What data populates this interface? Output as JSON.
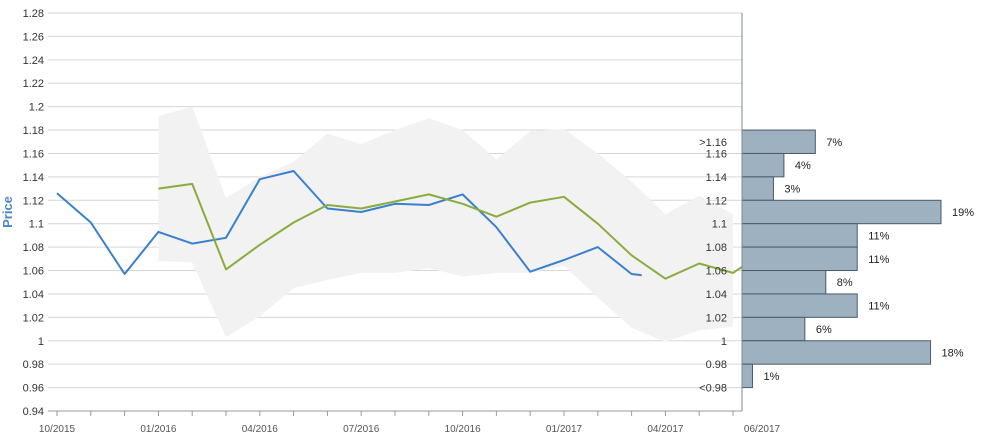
{
  "chart_data": {
    "type": "line",
    "ylabel": "Price",
    "ylim": [
      0.94,
      1.28
    ],
    "y_ticks": [
      "0.94",
      "0.96",
      "0.98",
      "1",
      "1.02",
      "1.04",
      "1.06",
      "1.08",
      "1.1",
      "1.12",
      "1.14",
      "1.16",
      "1.18",
      "1.2",
      "1.22",
      "1.24",
      "1.26",
      "1.28"
    ],
    "x_ticks": [
      "10/2015",
      "01/2016",
      "04/2016",
      "07/2016",
      "10/2016",
      "01/2017",
      "04/2017",
      "06/2017"
    ],
    "grid": true,
    "series": [
      {
        "color": "#3a80cc",
        "points": [
          [
            "2015-10",
            1.126
          ],
          [
            "2015-11",
            1.101
          ],
          [
            "2015-12",
            1.057
          ],
          [
            "2016-01",
            1.093
          ],
          [
            "2016-02",
            1.083
          ],
          [
            "2016-03",
            1.088
          ],
          [
            "2016-04",
            1.138
          ],
          [
            "2016-05",
            1.145
          ],
          [
            "2016-06",
            1.113
          ],
          [
            "2016-07",
            1.11
          ],
          [
            "2016-08",
            1.117
          ],
          [
            "2016-09",
            1.116
          ],
          [
            "2016-10",
            1.125
          ],
          [
            "2016-11",
            1.097
          ],
          [
            "2016-12",
            1.059
          ],
          [
            "2017-01",
            1.069
          ],
          [
            "2017-02",
            1.08
          ],
          [
            "2017-03",
            1.057
          ],
          [
            "2017-03-10",
            1.056
          ]
        ]
      },
      {
        "color": "#8aac3e",
        "points": [
          [
            "2016-01",
            1.13
          ],
          [
            "2016-02",
            1.134
          ],
          [
            "2016-03",
            1.061
          ],
          [
            "2016-04",
            1.082
          ],
          [
            "2016-05",
            1.101
          ],
          [
            "2016-06",
            1.116
          ],
          [
            "2016-07",
            1.113
          ],
          [
            "2016-08",
            1.119
          ],
          [
            "2016-09",
            1.125
          ],
          [
            "2016-10",
            1.117
          ],
          [
            "2016-11",
            1.106
          ],
          [
            "2016-12",
            1.118
          ],
          [
            "2017-01",
            1.123
          ],
          [
            "2017-02",
            1.1
          ],
          [
            "2017-03",
            1.073
          ],
          [
            "2017-04",
            1.053
          ],
          [
            "2017-05",
            1.066
          ],
          [
            "2017-06",
            1.058
          ],
          [
            "2017-06-15",
            1.067
          ]
        ]
      }
    ],
    "band": {
      "color": "#f2f2f2",
      "upper": [
        [
          "2016-01",
          1.192
        ],
        [
          "2016-02",
          1.2
        ],
        [
          "2016-03",
          1.122
        ],
        [
          "2016-04",
          1.14
        ],
        [
          "2016-05",
          1.153
        ],
        [
          "2016-06",
          1.177
        ],
        [
          "2016-07",
          1.168
        ],
        [
          "2016-08",
          1.18
        ],
        [
          "2016-09",
          1.19
        ],
        [
          "2016-10",
          1.18
        ],
        [
          "2016-11",
          1.155
        ],
        [
          "2016-12",
          1.179
        ],
        [
          "2017-01",
          1.181
        ],
        [
          "2017-02",
          1.16
        ],
        [
          "2017-03",
          1.136
        ],
        [
          "2017-04",
          1.108
        ],
        [
          "2017-05",
          1.124
        ],
        [
          "2017-06",
          1.108
        ]
      ],
      "lower": [
        [
          "2016-01",
          1.068
        ],
        [
          "2016-02",
          1.067
        ],
        [
          "2016-03",
          1.003
        ],
        [
          "2016-04",
          1.021
        ],
        [
          "2016-05",
          1.045
        ],
        [
          "2016-06",
          1.052
        ],
        [
          "2016-07",
          1.058
        ],
        [
          "2016-08",
          1.058
        ],
        [
          "2016-09",
          1.062
        ],
        [
          "2016-10",
          1.055
        ],
        [
          "2016-11",
          1.058
        ],
        [
          "2016-12",
          1.058
        ],
        [
          "2017-01",
          1.064
        ],
        [
          "2017-02",
          1.037
        ],
        [
          "2017-03",
          1.011
        ],
        [
          "2017-04",
          0.999
        ],
        [
          "2017-05",
          1.009
        ],
        [
          "2017-06",
          1.012
        ]
      ]
    },
    "distribution": {
      "fill": "#9db1c1",
      "stroke": "#4a5a68",
      "bins": [
        {
          "tick": ">1.16",
          "lo": 1.16,
          "hi": 1.18,
          "pct": 7,
          "label": "7%"
        },
        {
          "tick": "1.16",
          "lo": 1.14,
          "hi": 1.16,
          "pct": 4,
          "label": "4%"
        },
        {
          "tick": "1.14",
          "lo": 1.12,
          "hi": 1.14,
          "pct": 3,
          "label": "3%"
        },
        {
          "tick": "1.12",
          "lo": 1.1,
          "hi": 1.12,
          "pct": 19,
          "label": "19%"
        },
        {
          "tick": "1.1",
          "lo": 1.08,
          "hi": 1.1,
          "pct": 11,
          "label": "11%"
        },
        {
          "tick": "1.08",
          "lo": 1.06,
          "hi": 1.08,
          "pct": 11,
          "label": "11%"
        },
        {
          "tick": "1.06",
          "lo": 1.04,
          "hi": 1.06,
          "pct": 8,
          "label": "8%"
        },
        {
          "tick": "1.04",
          "lo": 1.02,
          "hi": 1.04,
          "pct": 11,
          "label": "11%"
        },
        {
          "tick": "1.02",
          "lo": 1.0,
          "hi": 1.02,
          "pct": 6,
          "label": "6%"
        },
        {
          "tick": "1",
          "lo": 0.98,
          "hi": 1.0,
          "pct": 18,
          "label": "18%"
        },
        {
          "tick": "0.98",
          "lo": 0.96,
          "hi": 0.98,
          "pct": 1,
          "label": "1%"
        },
        {
          "tick": "<0.98",
          "lo": null,
          "hi": null,
          "pct": null,
          "label": null
        }
      ]
    }
  }
}
